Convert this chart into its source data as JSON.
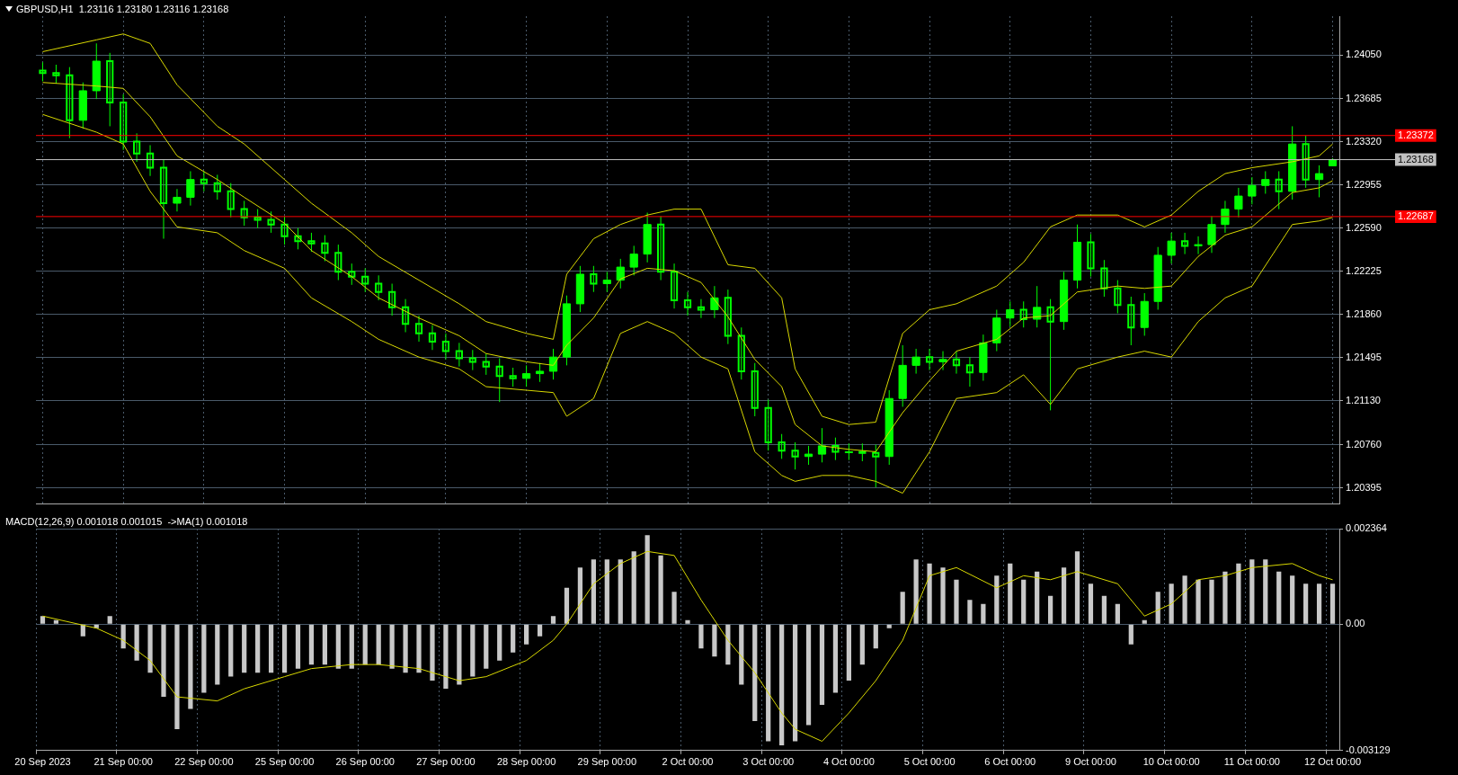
{
  "chart_data": [
    {
      "type": "candlestick",
      "title": "GBPUSD,H1  1.23116 1.23180 1.23116 1.23168",
      "categories": [
        null,
        null,
        null,
        null,
        null,
        null,
        null,
        null,
        null,
        null,
        null,
        null,
        null,
        null,
        null,
        null,
        null,
        null,
        null,
        null,
        null,
        null,
        null,
        null,
        null,
        null,
        null,
        null,
        null,
        null,
        null,
        null,
        null,
        null,
        null,
        null,
        null,
        null,
        null,
        null,
        null,
        null,
        null,
        null,
        null,
        null,
        null,
        null,
        null,
        null,
        null,
        null,
        null,
        null,
        null,
        null,
        null,
        null,
        null,
        null,
        null,
        null,
        null,
        null,
        null,
        null,
        null,
        null,
        null,
        null,
        null,
        null,
        null,
        null,
        null,
        null,
        null,
        null,
        null,
        null,
        null,
        null,
        null,
        null,
        null,
        null,
        null,
        null,
        null,
        null,
        null,
        null,
        null,
        null,
        null,
        null,
        null
      ],
      "ohlc": [
        [
          1.2392,
          1.2399,
          1.2383,
          1.239
        ],
        [
          1.239,
          1.2397,
          1.2381,
          1.2388
        ],
        [
          1.2388,
          1.2395,
          1.2335,
          1.235
        ],
        [
          1.235,
          1.2382,
          1.2343,
          1.2375
        ],
        [
          1.2375,
          1.2415,
          1.2368,
          1.24
        ],
        [
          1.24,
          1.2407,
          1.2345,
          1.2365
        ],
        [
          1.2365,
          1.2372,
          1.2325,
          1.2332
        ],
        [
          1.2332,
          1.2339,
          1.2315,
          1.2322
        ],
        [
          1.2322,
          1.2329,
          1.2303,
          1.231
        ],
        [
          1.231,
          1.2317,
          1.225,
          1.228
        ],
        [
          1.228,
          1.2292,
          1.2273,
          1.2285
        ],
        [
          1.2285,
          1.2307,
          1.2278,
          1.23
        ],
        [
          1.23,
          1.2307,
          1.229,
          1.2297
        ],
        [
          1.2297,
          1.2304,
          1.2283,
          1.229
        ],
        [
          1.229,
          1.2297,
          1.2268,
          1.2275
        ],
        [
          1.2275,
          1.2282,
          1.2261,
          1.2268
        ],
        [
          1.2268,
          1.2275,
          1.2259,
          1.2266
        ],
        [
          1.2266,
          1.2273,
          1.2255,
          1.2262
        ],
        [
          1.2262,
          1.2269,
          1.2245,
          1.2252
        ],
        [
          1.2252,
          1.2259,
          1.2241,
          1.2248
        ],
        [
          1.2248,
          1.2255,
          1.2239,
          1.2246
        ],
        [
          1.2246,
          1.2253,
          1.2231,
          1.2238
        ],
        [
          1.2238,
          1.2245,
          1.2215,
          1.2222
        ],
        [
          1.2222,
          1.2229,
          1.2211,
          1.2218
        ],
        [
          1.2218,
          1.2225,
          1.2205,
          1.2212
        ],
        [
          1.2212,
          1.2219,
          1.2198,
          1.2205
        ],
        [
          1.2205,
          1.2212,
          1.2185,
          1.2192
        ],
        [
          1.2192,
          1.2199,
          1.2171,
          1.2178
        ],
        [
          1.2178,
          1.2185,
          1.2163,
          1.217
        ],
        [
          1.217,
          1.2177,
          1.2156,
          1.2163
        ],
        [
          1.2163,
          1.217,
          1.2148,
          1.2155
        ],
        [
          1.2155,
          1.2162,
          1.2142,
          1.2149
        ],
        [
          1.2149,
          1.2156,
          1.2139,
          1.2146
        ],
        [
          1.2146,
          1.2153,
          1.2135,
          1.2142
        ],
        [
          1.2142,
          1.2149,
          1.2112,
          1.2134
        ],
        [
          1.2134,
          1.2141,
          1.2125,
          1.2132
        ],
        [
          1.2132,
          1.2143,
          1.2125,
          1.2136
        ],
        [
          1.2136,
          1.2145,
          1.2129,
          1.2138
        ],
        [
          1.2138,
          1.2157,
          1.2131,
          1.215
        ],
        [
          1.215,
          1.2202,
          1.2143,
          1.2195
        ],
        [
          1.2195,
          1.2227,
          1.2188,
          1.222
        ],
        [
          1.222,
          1.2227,
          1.2205,
          1.2212
        ],
        [
          1.2212,
          1.2222,
          1.2205,
          1.2215
        ],
        [
          1.2215,
          1.2233,
          1.2208,
          1.2226
        ],
        [
          1.2226,
          1.2244,
          1.2219,
          1.2237
        ],
        [
          1.2237,
          1.2272,
          1.223,
          1.2262
        ],
        [
          1.2262,
          1.2269,
          1.2215,
          1.2222
        ],
        [
          1.2222,
          1.2229,
          1.2191,
          1.2198
        ],
        [
          1.2198,
          1.2205,
          1.2185,
          1.2192
        ],
        [
          1.2192,
          1.2199,
          1.2183,
          1.219
        ],
        [
          1.219,
          1.221,
          1.2183,
          1.22
        ],
        [
          1.22,
          1.2207,
          1.2161,
          1.2168
        ],
        [
          1.2168,
          1.2175,
          1.2131,
          1.2138
        ],
        [
          1.2138,
          1.2145,
          1.21,
          1.2107
        ],
        [
          1.2107,
          1.2114,
          1.2071,
          1.2078
        ],
        [
          1.2078,
          1.2085,
          1.2064,
          1.2071
        ],
        [
          1.2071,
          1.2078,
          1.2055,
          1.2066
        ],
        [
          1.2066,
          1.2075,
          1.2059,
          1.2068
        ],
        [
          1.2068,
          1.209,
          1.2061,
          1.2075
        ],
        [
          1.2075,
          1.2082,
          1.2063,
          1.207
        ],
        [
          1.207,
          1.2077,
          1.2063,
          1.207
        ],
        [
          1.207,
          1.2077,
          1.2062,
          1.2069
        ],
        [
          1.2069,
          1.2076,
          1.204,
          1.2066
        ],
        [
          1.2066,
          1.2122,
          1.2059,
          1.2115
        ],
        [
          1.2115,
          1.216,
          1.2108,
          1.2143
        ],
        [
          1.2143,
          1.2157,
          1.2136,
          1.215
        ],
        [
          1.215,
          1.2157,
          1.2139,
          1.2146
        ],
        [
          1.2146,
          1.2155,
          1.2139,
          1.2148
        ],
        [
          1.2148,
          1.2155,
          1.2136,
          1.2143
        ],
        [
          1.2143,
          1.215,
          1.2125,
          1.2137
        ],
        [
          1.2137,
          1.2169,
          1.213,
          1.2162
        ],
        [
          1.2162,
          1.219,
          1.2155,
          1.2183
        ],
        [
          1.2183,
          1.2197,
          1.2176,
          1.219
        ],
        [
          1.219,
          1.2197,
          1.2175,
          1.2182
        ],
        [
          1.2182,
          1.221,
          1.2175,
          1.2192
        ],
        [
          1.2192,
          1.2199,
          1.2105,
          1.218
        ],
        [
          1.218,
          1.2222,
          1.2173,
          1.2215
        ],
        [
          1.2215,
          1.2262,
          1.2208,
          1.2247
        ],
        [
          1.2247,
          1.2254,
          1.2218,
          1.2225
        ],
        [
          1.2225,
          1.2232,
          1.2201,
          1.2208
        ],
        [
          1.2208,
          1.2215,
          1.2187,
          1.2194
        ],
        [
          1.2194,
          1.2201,
          1.216,
          1.2175
        ],
        [
          1.2175,
          1.2204,
          1.2168,
          1.2197
        ],
        [
          1.2197,
          1.2243,
          1.219,
          1.2236
        ],
        [
          1.2236,
          1.2255,
          1.2229,
          1.2248
        ],
        [
          1.2248,
          1.2255,
          1.2237,
          1.2244
        ],
        [
          1.2244,
          1.2252,
          1.2237,
          1.2245
        ],
        [
          1.2245,
          1.2269,
          1.2238,
          1.2262
        ],
        [
          1.2262,
          1.2282,
          1.2255,
          1.2275
        ],
        [
          1.2275,
          1.2293,
          1.2268,
          1.2286
        ],
        [
          1.2286,
          1.2302,
          1.2279,
          1.2295
        ],
        [
          1.2295,
          1.2307,
          1.2288,
          1.23
        ],
        [
          1.23,
          1.2307,
          1.2275,
          1.229
        ],
        [
          1.229,
          1.2345,
          1.2283,
          1.233
        ],
        [
          1.233,
          1.2337,
          1.2293,
          1.23
        ],
        [
          1.23,
          1.2312,
          1.2285,
          1.2305
        ],
        [
          1.23116,
          1.2318,
          1.23116,
          1.23168
        ]
      ],
      "color": "#00ff00",
      "series": [
        {
          "type": "line",
          "color": "#d8d800",
          "values": [
            1.2408,
            null,
            null,
            null,
            1.2418,
            null,
            1.2423,
            null,
            1.2415,
            null,
            1.238,
            null,
            null,
            1.2345,
            null,
            1.233,
            null,
            null,
            1.23,
            null,
            1.228,
            null,
            null,
            1.2255,
            null,
            1.2235,
            null,
            null,
            1.2215,
            null,
            null,
            1.2195,
            null,
            1.218,
            null,
            null,
            1.217,
            null,
            1.2165,
            1.222,
            null,
            1.225,
            null,
            1.2262,
            null,
            1.227,
            null,
            1.2275,
            null,
            1.2275,
            null,
            1.2228,
            null,
            1.2225,
            null,
            1.22,
            1.214,
            null,
            1.21,
            null,
            1.2093,
            null,
            1.2095,
            null,
            1.217,
            null,
            1.219,
            null,
            1.2195,
            null,
            null,
            1.221,
            null,
            1.223,
            null,
            1.226,
            null,
            1.227,
            null,
            null,
            1.227,
            null,
            1.226,
            null,
            1.227,
            null,
            1.229,
            null,
            1.2305,
            null,
            1.231,
            null,
            null,
            1.2315,
            null,
            1.232,
            1.233
          ]
        },
        {
          "type": "line",
          "color": "#d8d800",
          "values": [
            1.2382,
            null,
            null,
            null,
            1.2379,
            null,
            1.2377,
            null,
            1.2353,
            null,
            1.232,
            null,
            null,
            1.23,
            null,
            1.2285,
            null,
            null,
            1.2263,
            null,
            1.224,
            null,
            null,
            1.2218,
            null,
            1.22,
            null,
            null,
            1.2183,
            null,
            null,
            1.2168,
            null,
            1.2153,
            null,
            null,
            1.2146,
            null,
            1.2143,
            1.216,
            null,
            1.2183,
            null,
            1.2216,
            null,
            1.2225,
            null,
            1.2223,
            null,
            1.2213,
            null,
            1.2184,
            null,
            1.2148,
            null,
            1.2125,
            1.2093,
            null,
            1.2075,
            null,
            1.2072,
            null,
            1.207,
            null,
            1.2103,
            null,
            1.213,
            null,
            1.2155,
            null,
            null,
            1.2165,
            null,
            1.2183,
            null,
            1.2185,
            null,
            1.2205,
            null,
            null,
            1.221,
            null,
            1.2208,
            null,
            1.221,
            null,
            1.2235,
            null,
            1.2253,
            null,
            1.226,
            null,
            null,
            1.2289,
            null,
            1.2293,
            1.2299
          ]
        },
        {
          "type": "line",
          "color": "#d8d800",
          "values": [
            1.2355,
            null,
            null,
            null,
            1.234,
            null,
            1.233,
            null,
            1.229,
            null,
            1.226,
            null,
            null,
            1.2255,
            null,
            1.224,
            null,
            null,
            1.2225,
            null,
            1.22,
            null,
            null,
            1.218,
            null,
            1.2165,
            null,
            null,
            1.215,
            null,
            null,
            1.214,
            null,
            1.2125,
            null,
            null,
            1.2122,
            null,
            1.212,
            1.21,
            null,
            1.2115,
            null,
            1.217,
            null,
            1.218,
            null,
            1.217,
            null,
            1.215,
            null,
            1.214,
            null,
            1.207,
            null,
            1.205,
            1.2045,
            null,
            1.205,
            null,
            1.205,
            null,
            1.2045,
            null,
            1.2035,
            null,
            1.207,
            null,
            1.2115,
            null,
            null,
            1.212,
            null,
            1.2135,
            null,
            1.211,
            null,
            1.214,
            null,
            null,
            1.215,
            null,
            1.2155,
            null,
            1.215,
            null,
            1.218,
            null,
            1.22,
            null,
            1.221,
            null,
            null,
            1.2262,
            null,
            1.2265,
            1.2268
          ]
        }
      ],
      "ylim": [
        1.2026,
        1.2438
      ],
      "yticks": [
        {
          "value": 1.20395,
          "label": "1.20395"
        },
        {
          "value": 1.2076,
          "label": "1.20760"
        },
        {
          "value": 1.2113,
          "label": "1.21130"
        },
        {
          "value": 1.21495,
          "label": "1.21495"
        },
        {
          "value": 1.2186,
          "label": "1.21860"
        },
        {
          "value": 1.22225,
          "label": "1.22225"
        },
        {
          "value": 1.2259,
          "label": "1.22590"
        },
        {
          "value": 1.22955,
          "label": "1.22955"
        },
        {
          "value": 1.2332,
          "label": "1.23320"
        },
        {
          "value": 1.23685,
          "label": "1.23685"
        },
        {
          "value": 1.2405,
          "label": "1.24050"
        }
      ],
      "ref_lines": [
        {
          "axis": "y",
          "value": 1.23372,
          "label": "1.23372",
          "color": "#ff0000"
        },
        {
          "axis": "y",
          "value": 1.22687,
          "label": "1.22687",
          "color": "#ff0000"
        },
        {
          "axis": "y",
          "value": 1.23168,
          "label": "1.23168",
          "color": "#c0c0c0"
        }
      ],
      "grid": true,
      "tick_labels": "y"
    },
    {
      "type": "bar",
      "title": "MACD(12,26,9) 0.001018 0.001015  ->MA(1) 0.001018",
      "categories": [
        "20 Sep 2023",
        null,
        null,
        null,
        null,
        null,
        "21 Sep 00:00",
        null,
        null,
        null,
        null,
        null,
        "22 Sep 00:00",
        null,
        null,
        null,
        null,
        null,
        "25 Sep 00:00",
        null,
        null,
        null,
        null,
        null,
        "26 Sep 00:00",
        null,
        null,
        null,
        null,
        null,
        "27 Sep 00:00",
        null,
        null,
        null,
        null,
        null,
        "28 Sep 00:00",
        null,
        null,
        null,
        null,
        null,
        "29 Sep 00:00",
        null,
        null,
        null,
        null,
        null,
        "2 Oct 00:00",
        null,
        null,
        null,
        null,
        null,
        "3 Oct 00:00",
        null,
        null,
        null,
        null,
        null,
        "4 Oct 00:00",
        null,
        null,
        null,
        null,
        null,
        "5 Oct 00:00",
        null,
        null,
        null,
        null,
        null,
        "6 Oct 00:00",
        null,
        null,
        null,
        null,
        null,
        "9 Oct 00:00",
        null,
        null,
        null,
        null,
        null,
        "10 Oct 00:00",
        null,
        null,
        null,
        null,
        null,
        "11 Oct 00:00",
        null,
        null,
        null,
        null,
        null,
        "12 Oct 00:00"
      ],
      "series": [
        {
          "type": "bar",
          "color": "#c8c8c8",
          "values": [
            0.0002,
            0.0001,
            0.0,
            -0.0003,
            -0.0001,
            0.0002,
            -0.0006,
            -0.0009,
            -0.0012,
            -0.0018,
            -0.0026,
            -0.0021,
            -0.0017,
            -0.0015,
            -0.0013,
            -0.0012,
            -0.0012,
            -0.0012,
            -0.0012,
            -0.0011,
            -0.001,
            -0.001,
            -0.0011,
            -0.0011,
            -0.001,
            -0.001,
            -0.0011,
            -0.0012,
            -0.0012,
            -0.0014,
            -0.0016,
            -0.0015,
            -0.0013,
            -0.0011,
            -0.0009,
            -0.0007,
            -0.0005,
            -0.0003,
            0.0002,
            0.0009,
            0.0014,
            0.0016,
            0.0016,
            0.0016,
            0.0018,
            0.0022,
            0.0017,
            0.0008,
            0.0001,
            -0.0006,
            -0.0008,
            -0.001,
            -0.0015,
            -0.0024,
            -0.0029,
            -0.003,
            -0.0029,
            -0.0025,
            -0.002,
            -0.0017,
            -0.0014,
            -0.001,
            -0.0006,
            -0.0001,
            0.0008,
            0.0016,
            0.0015,
            0.0014,
            0.0011,
            0.0006,
            0.0005,
            0.0012,
            0.0015,
            0.0011,
            0.0013,
            0.0007,
            0.0014,
            0.0018,
            0.001,
            0.0007,
            0.0005,
            -0.0005,
            0.0001,
            0.0008,
            0.001,
            0.0012,
            0.0011,
            0.0011,
            0.0013,
            0.0015,
            0.0016,
            0.0016,
            0.0013,
            0.0012,
            0.001,
            0.001,
            0.001
          ]
        },
        {
          "type": "line",
          "color": "#d8d800",
          "values": [
            0.0002,
            null,
            null,
            null,
            -0.0001,
            null,
            -0.0004,
            null,
            -0.0009,
            null,
            -0.0018,
            null,
            null,
            -0.0019,
            null,
            -0.0016,
            null,
            null,
            -0.0013,
            null,
            -0.0011,
            null,
            null,
            -0.001,
            null,
            -0.001,
            null,
            null,
            -0.0011,
            null,
            null,
            -0.0014,
            null,
            -0.0013,
            null,
            null,
            -0.0009,
            null,
            -0.0004,
            0.0,
            null,
            0.001,
            null,
            0.0015,
            null,
            0.0018,
            null,
            0.0017,
            null,
            0.0006,
            null,
            -0.0004,
            null,
            -0.0012,
            null,
            -0.0022,
            -0.0026,
            null,
            -0.0029,
            null,
            -0.0022,
            null,
            -0.0014,
            null,
            -0.0004,
            null,
            0.0012,
            null,
            0.0014,
            null,
            null,
            0.0009,
            null,
            0.0012,
            null,
            0.0011,
            null,
            0.0013,
            null,
            null,
            0.001,
            null,
            0.0002,
            null,
            0.0005,
            null,
            0.0011,
            null,
            0.0012,
            null,
            0.0014,
            null,
            null,
            0.0015,
            null,
            0.0012,
            0.0011
          ]
        }
      ],
      "ylim": [
        -0.003129,
        0.002364
      ],
      "yticks": [
        -0.003129,
        {
          "value": 0,
          "label": "0.00"
        },
        0.002364
      ],
      "grid": true
    }
  ]
}
